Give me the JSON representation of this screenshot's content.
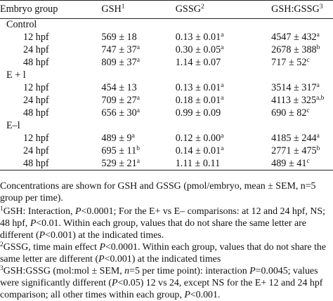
{
  "table": {
    "headers": [
      {
        "label": "Embryo group",
        "sup": ""
      },
      {
        "label": "GSH",
        "sup": "1"
      },
      {
        "label": "GSSG",
        "sup": "2"
      },
      {
        "label": "GSH:GSSG",
        "sup": "3"
      }
    ],
    "groups": [
      {
        "name": "Control",
        "rows": [
          {
            "time": "12 hpf",
            "gsh": "569 ± 18",
            "gsh_sup": "",
            "gssg": "0.13 ± 0.01",
            "gssg_sup": "a",
            "ratio": "4547 ± 432",
            "ratio_sup": "a"
          },
          {
            "time": "24 hpf",
            "gsh": "747 ± 37",
            "gsh_sup": "a",
            "gssg": "0.30 ± 0.05",
            "gssg_sup": "a",
            "ratio": "2678 ± 388",
            "ratio_sup": "b"
          },
          {
            "time": "48 hpf",
            "gsh": "809 ± 37",
            "gsh_sup": "a",
            "gssg": "1.14 ± 0.07",
            "gssg_sup": "",
            "ratio": "717 ± 52",
            "ratio_sup": "c"
          }
        ]
      },
      {
        "name": "E + l",
        "rows": [
          {
            "time": "12 hpf",
            "gsh": "454 ± 13",
            "gsh_sup": "",
            "gssg": "0.13 ± 0.01",
            "gssg_sup": "a",
            "ratio": "3514 ± 317",
            "ratio_sup": "a"
          },
          {
            "time": "24 hpf",
            "gsh": "709 ± 27",
            "gsh_sup": "a",
            "gssg": "0.18 ± 0.01",
            "gssg_sup": "a",
            "ratio": "4113 ± 325",
            "ratio_sup": "a,b"
          },
          {
            "time": "48 hpf",
            "gsh": "656 ± 30",
            "gsh_sup": "a",
            "gssg": "0.99 ± 0.09",
            "gssg_sup": "",
            "ratio": "690 ± 82",
            "ratio_sup": "c"
          }
        ]
      },
      {
        "name": "E–l",
        "rows": [
          {
            "time": "12 hpf",
            "gsh": "489 ± 9",
            "gsh_sup": "a",
            "gssg": "0.12 ± 0.00",
            "gssg_sup": "a",
            "ratio": "4185 ± 244",
            "ratio_sup": "a"
          },
          {
            "time": "24 hpf",
            "gsh": "695 ± 11",
            "gsh_sup": "b",
            "gssg": "0.14 ± 0.01",
            "gssg_sup": "a",
            "ratio": "2771 ± 475",
            "ratio_sup": "b"
          },
          {
            "time": "48 hpf",
            "gsh": "529 ± 21",
            "gsh_sup": "a",
            "gssg": "1.11 ± 0.11",
            "gssg_sup": "",
            "ratio": "489 ± 41",
            "ratio_sup": "c"
          }
        ]
      }
    ]
  },
  "notes": {
    "intro": "Concentrations are shown for GSH and GSSG (pmol/embryo, mean ± SEM, n=5 group per time).",
    "n1": {
      "sup": "1",
      "a": "GSH: Interaction, ",
      "p1": "P",
      "b": "<0.0001; For the E+ vs E– comparisons: at 12 and 24 hpf, NS; 48 hpf, ",
      "p2": "P",
      "c": "<0.01. Within each group, values that do not share the same letter are different (",
      "p3": "P",
      "d": "<0.001) at the indicated times."
    },
    "n2": {
      "sup": "2",
      "a": "GSSG, time main effect ",
      "p1": "P",
      "b": "<0.0001. Within each group, values that do not share the same letter are different (",
      "p2": "P",
      "c": "<0.001) at the indicated times"
    },
    "n3": {
      "sup": "3",
      "a": "GSH:GSSG (mol:mol ± SEM, ",
      "nsym": "n",
      "b": "=5 per time point): interaction ",
      "p1": "P",
      "c": "=0.0045; values were significantly different (",
      "p2": "P",
      "d": "<0.05) 12 vs 24, except NS for the E+ 12 and 24 hpf comparison; all other times within each group, ",
      "p3": "P",
      "e": "<0.001."
    }
  }
}
